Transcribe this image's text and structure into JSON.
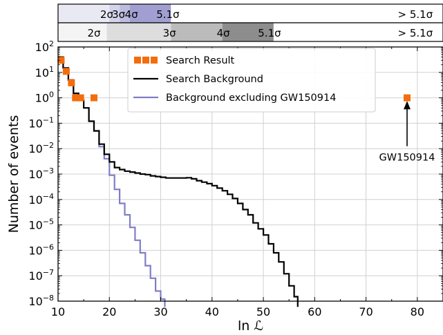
{
  "chart_data": {
    "type": "line",
    "title": "",
    "xlabel": "ln ℒ",
    "ylabel": "Number of events",
    "xlim": [
      10,
      85
    ],
    "ylim_log10": [
      -8,
      2
    ],
    "y_scale": "log",
    "grid": true,
    "x_ticks": [
      {
        "value": 10,
        "label": "10"
      },
      {
        "value": 20,
        "label": "20"
      },
      {
        "value": 30,
        "label": "30"
      },
      {
        "value": 40,
        "label": "40"
      },
      {
        "value": 50,
        "label": "50"
      },
      {
        "value": 60,
        "label": "60"
      },
      {
        "value": 70,
        "label": "70"
      },
      {
        "value": 80,
        "label": "80"
      }
    ],
    "y_ticks": [
      {
        "exp": 2,
        "label": "10",
        "sup": "2"
      },
      {
        "exp": 1,
        "label": "10",
        "sup": "1"
      },
      {
        "exp": 0,
        "label": "10",
        "sup": "0"
      },
      {
        "exp": -1,
        "label": "10",
        "sup": "−1"
      },
      {
        "exp": -2,
        "label": "10",
        "sup": "−2"
      },
      {
        "exp": -3,
        "label": "10",
        "sup": "−3"
      },
      {
        "exp": -4,
        "label": "10",
        "sup": "−4"
      },
      {
        "exp": -5,
        "label": "10",
        "sup": "−5"
      },
      {
        "exp": -6,
        "label": "10",
        "sup": "−6"
      },
      {
        "exp": -7,
        "label": "10",
        "sup": "−7"
      },
      {
        "exp": -8,
        "label": "10",
        "sup": "−8"
      }
    ],
    "legend": {
      "placement": "top-center",
      "entries": [
        {
          "label": "Search Result",
          "marker": "square",
          "color": "#f36d0c"
        },
        {
          "label": "Search Background",
          "marker": "line",
          "color": "#000000"
        },
        {
          "label": "Background excluding GW150914",
          "marker": "line",
          "color": "#7f7dc6"
        }
      ]
    },
    "series": [
      {
        "name": "Search Result",
        "style": "scatter",
        "color": "#f36d0c",
        "points": [
          {
            "x": 10.6,
            "y": 30
          },
          {
            "x": 11.6,
            "y": 11
          },
          {
            "x": 12.6,
            "y": 3.9
          },
          {
            "x": 13.4,
            "y": 1.0
          },
          {
            "x": 14.4,
            "y": 1.0
          },
          {
            "x": 17.0,
            "y": 1.0
          },
          {
            "x": 78.0,
            "y": 1.0
          }
        ]
      },
      {
        "name": "Search Background",
        "style": "step",
        "color": "#000000",
        "points": [
          {
            "x": 10.0,
            "y": 40
          },
          {
            "x": 11.0,
            "y": 15
          },
          {
            "x": 12.0,
            "y": 5
          },
          {
            "x": 13.0,
            "y": 1.5
          },
          {
            "x": 14.0,
            "y": 0.8
          },
          {
            "x": 15.0,
            "y": 0.4
          },
          {
            "x": 16.0,
            "y": 0.12
          },
          {
            "x": 17.0,
            "y": 0.05
          },
          {
            "x": 18.0,
            "y": 0.015
          },
          {
            "x": 19.0,
            "y": 0.006
          },
          {
            "x": 20.0,
            "y": 0.003
          },
          {
            "x": 21.0,
            "y": 0.0018
          },
          {
            "x": 22.0,
            "y": 0.0015
          },
          {
            "x": 23.0,
            "y": 0.0013
          },
          {
            "x": 24.0,
            "y": 0.0012
          },
          {
            "x": 25.0,
            "y": 0.0011
          },
          {
            "x": 26.0,
            "y": 0.001
          },
          {
            "x": 27.0,
            "y": 0.00095
          },
          {
            "x": 28.0,
            "y": 0.00085
          },
          {
            "x": 29.0,
            "y": 0.0008
          },
          {
            "x": 30.0,
            "y": 0.00075
          },
          {
            "x": 31.0,
            "y": 0.0007
          },
          {
            "x": 35.0,
            "y": 0.00072
          },
          {
            "x": 36.0,
            "y": 0.00065
          },
          {
            "x": 37.0,
            "y": 0.00055
          },
          {
            "x": 38.0,
            "y": 0.00048
          },
          {
            "x": 39.0,
            "y": 0.00042
          },
          {
            "x": 40.0,
            "y": 0.00035
          },
          {
            "x": 41.0,
            "y": 0.00028
          },
          {
            "x": 42.0,
            "y": 0.00022
          },
          {
            "x": 43.0,
            "y": 0.00016
          },
          {
            "x": 44.0,
            "y": 0.00011
          },
          {
            "x": 45.0,
            "y": 7e-05
          },
          {
            "x": 46.0,
            "y": 4e-05
          },
          {
            "x": 47.0,
            "y": 2.5e-05
          },
          {
            "x": 48.0,
            "y": 1.2e-05
          },
          {
            "x": 49.0,
            "y": 7e-06
          },
          {
            "x": 50.0,
            "y": 4e-06
          },
          {
            "x": 51.0,
            "y": 1.8e-06
          },
          {
            "x": 52.0,
            "y": 8e-07
          },
          {
            "x": 53.0,
            "y": 3.5e-07
          },
          {
            "x": 54.0,
            "y": 1.2e-07
          },
          {
            "x": 55.0,
            "y": 4e-08
          },
          {
            "x": 56.0,
            "y": 1.5e-08
          },
          {
            "x": 56.7,
            "y": 6e-09
          }
        ]
      },
      {
        "name": "Background excluding GW150914",
        "style": "step",
        "color": "#7f7dc6",
        "points": [
          {
            "x": 10.0,
            "y": 40
          },
          {
            "x": 11.0,
            "y": 15
          },
          {
            "x": 12.0,
            "y": 5
          },
          {
            "x": 13.0,
            "y": 1.5
          },
          {
            "x": 14.0,
            "y": 0.8
          },
          {
            "x": 15.0,
            "y": 0.4
          },
          {
            "x": 16.0,
            "y": 0.12
          },
          {
            "x": 17.0,
            "y": 0.05
          },
          {
            "x": 18.0,
            "y": 0.012
          },
          {
            "x": 19.0,
            "y": 0.004
          },
          {
            "x": 20.0,
            "y": 0.0009
          },
          {
            "x": 21.0,
            "y": 0.00025
          },
          {
            "x": 22.0,
            "y": 7e-05
          },
          {
            "x": 23.0,
            "y": 2.5e-05
          },
          {
            "x": 24.0,
            "y": 8e-06
          },
          {
            "x": 25.0,
            "y": 2.5e-06
          },
          {
            "x": 26.0,
            "y": 8e-07
          },
          {
            "x": 27.0,
            "y": 2.5e-07
          },
          {
            "x": 28.0,
            "y": 8e-08
          },
          {
            "x": 29.0,
            "y": 2.5e-08
          },
          {
            "x": 30.0,
            "y": 1.2e-08
          },
          {
            "x": 30.8,
            "y": 6e-09
          }
        ]
      }
    ],
    "annotations": [
      {
        "text": "GW150914",
        "x": 78.0,
        "y_from": 0.0125,
        "y_to": 0.75,
        "arrow": true
      }
    ],
    "significance_bands": [
      {
        "name": "excluding GW150914",
        "segments": [
          {
            "x0": 10.0,
            "x1": 20.0,
            "color": "#e9e9f4"
          },
          {
            "x0": 20.0,
            "x1": 22.0,
            "color": "#d3d3ea"
          },
          {
            "x0": 22.0,
            "x1": 24.0,
            "color": "#bcbcdf"
          },
          {
            "x0": 24.0,
            "x1": 32.0,
            "color": "#a19fd2"
          },
          {
            "x0": 32.0,
            "x1": 85.0,
            "color": "#ffffff"
          }
        ],
        "labels": [
          {
            "x": 19.5,
            "text": "2σ"
          },
          {
            "x": 21.8,
            "text": "3σ"
          },
          {
            "x": 24.3,
            "text": "4σ"
          },
          {
            "x": 31.4,
            "text": "5.1σ"
          },
          {
            "x": 79.6,
            "text": "> 5.1σ"
          }
        ]
      },
      {
        "name": "search background",
        "segments": [
          {
            "x0": 10.0,
            "x1": 19.5,
            "color": "#f4f4f4"
          },
          {
            "x0": 19.5,
            "x1": 32.0,
            "color": "#dddddd"
          },
          {
            "x0": 32.0,
            "x1": 42.0,
            "color": "#bbbbbb"
          },
          {
            "x0": 42.0,
            "x1": 52.0,
            "color": "#8d8d8d"
          },
          {
            "x0": 52.0,
            "x1": 85.0,
            "color": "#ffffff"
          }
        ],
        "labels": [
          {
            "x": 17.0,
            "text": "2σ"
          },
          {
            "x": 31.7,
            "text": "3σ"
          },
          {
            "x": 42.2,
            "text": "4σ"
          },
          {
            "x": 51.2,
            "text": "5.1σ"
          },
          {
            "x": 79.6,
            "text": "> 5.1σ"
          }
        ]
      }
    ]
  }
}
